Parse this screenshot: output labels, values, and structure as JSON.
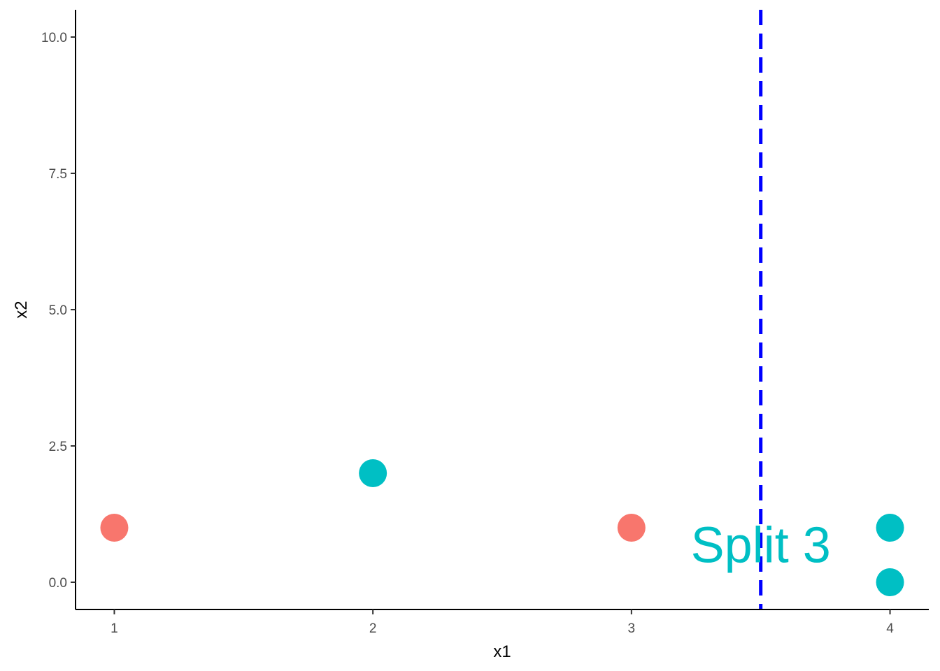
{
  "chart_data": {
    "type": "scatter",
    "xlabel": "x1",
    "ylabel": "x2",
    "xlim": [
      0.85,
      4.15
    ],
    "ylim": [
      -0.5,
      10.5
    ],
    "x_ticks": [
      1,
      2,
      3,
      4
    ],
    "x_tick_labels": [
      "1",
      "2",
      "3",
      "4"
    ],
    "y_ticks": [
      0,
      2.5,
      5,
      7.5,
      10
    ],
    "y_tick_labels": [
      "0.0",
      "2.5",
      "5.0",
      "7.5",
      "10.0"
    ],
    "grid": false,
    "legend": "none",
    "points": [
      {
        "x": 1,
        "y": 1,
        "color": "#F8766D"
      },
      {
        "x": 2,
        "y": 2,
        "color": "#00BFC4"
      },
      {
        "x": 3,
        "y": 1,
        "color": "#F8766D"
      },
      {
        "x": 4,
        "y": 1,
        "color": "#00BFC4"
      },
      {
        "x": 4,
        "y": 0,
        "color": "#00BFC4"
      }
    ],
    "split_line": {
      "x": 3.5,
      "color": "#0000FF",
      "style": "dashed"
    },
    "annotation": {
      "text": "Split 3",
      "x": 3.5,
      "y": 0.7,
      "color": "#00BFC4"
    }
  }
}
